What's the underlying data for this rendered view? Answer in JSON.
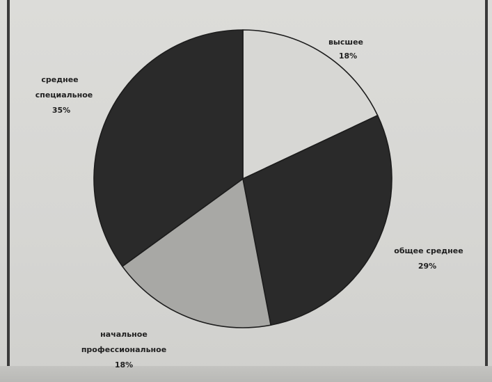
{
  "chart_data": {
    "type": "pie",
    "title": "",
    "start_angle_deg": 0,
    "direction": "clockwise",
    "slices": [
      {
        "label": "высшее",
        "value": 18,
        "value_label": "18%",
        "color": "#d7d7d4"
      },
      {
        "label": "общее среднее",
        "value": 29,
        "value_label": "29%",
        "color": "#2a2a2a"
      },
      {
        "label": "начальное профессиональное",
        "label_lines": [
          "начальное",
          "профессиональное"
        ],
        "value": 18,
        "value_label": "18%",
        "color": "#a8a8a5"
      },
      {
        "label": "среднее специальное",
        "label_lines": [
          "среднее",
          "специальное"
        ],
        "value": 35,
        "value_label": "35%",
        "color": "#2a2a2a"
      }
    ],
    "legend": "none",
    "data_labels": "outside"
  }
}
